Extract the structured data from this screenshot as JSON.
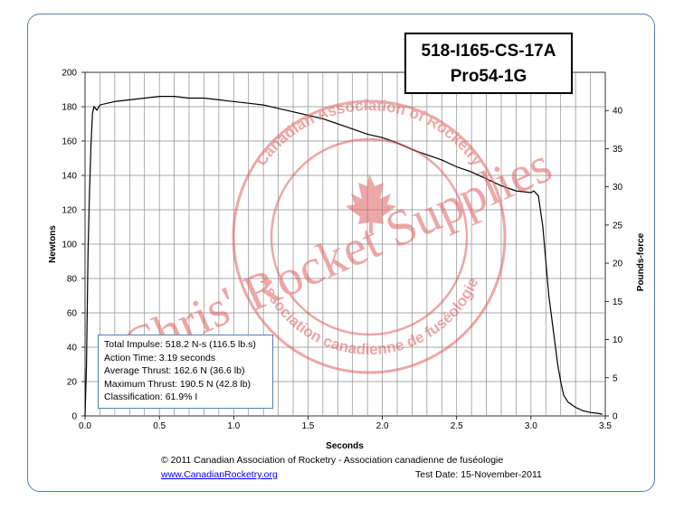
{
  "chart_data": {
    "type": "line",
    "title": "518-I165-CS-17A",
    "subtitle": "Pro54-1G",
    "xlabel": "Seconds",
    "ylabel": "Newtons",
    "y2label": "Pounds-force",
    "xlim": [
      0,
      3.5
    ],
    "ylim": [
      0,
      200
    ],
    "y2lim": [
      0,
      45
    ],
    "xticks": [
      "0.0",
      "0.5",
      "1.0",
      "1.5",
      "2.0",
      "2.5",
      "3.0",
      "3.5"
    ],
    "yticks": [
      "0",
      "20",
      "40",
      "60",
      "80",
      "100",
      "120",
      "140",
      "160",
      "180",
      "200"
    ],
    "y2ticks": [
      "0",
      "5",
      "10",
      "15",
      "20",
      "25",
      "30",
      "35",
      "40"
    ],
    "grid": true,
    "series": [
      {
        "color": "#000000",
        "x": [
          0.0,
          0.01,
          0.02,
          0.03,
          0.04,
          0.05,
          0.06,
          0.08,
          0.1,
          0.15,
          0.2,
          0.3,
          0.4,
          0.5,
          0.6,
          0.7,
          0.8,
          0.9,
          1.0,
          1.1,
          1.2,
          1.3,
          1.4,
          1.5,
          1.6,
          1.7,
          1.8,
          1.9,
          2.0,
          2.1,
          2.2,
          2.3,
          2.4,
          2.5,
          2.6,
          2.7,
          2.8,
          2.9,
          3.0,
          3.02,
          3.05,
          3.08,
          3.1,
          3.12,
          3.15,
          3.18,
          3.2,
          3.22,
          3.25,
          3.3,
          3.35,
          3.4,
          3.45,
          3.48
        ],
        "y": [
          0,
          30,
          95,
          130,
          158,
          176,
          180,
          178,
          181,
          182,
          183,
          184,
          185,
          186,
          186,
          185,
          185,
          184,
          183,
          182,
          181,
          179,
          177,
          175,
          173,
          170,
          167,
          164,
          162,
          159,
          155,
          152,
          149,
          145,
          142,
          138,
          134,
          131,
          130,
          131,
          128,
          110,
          90,
          70,
          50,
          30,
          20,
          12,
          8,
          5,
          3,
          2,
          1.5,
          1
        ]
      }
    ]
  },
  "stats": {
    "total_impulse": "Total Impulse: 518.2 N-s (116.5 lb.s)",
    "action_time": "Action Time: 3.19 seconds",
    "average_thrust": "Average Thrust: 162.6 N (36.6 lb)",
    "maximum_thrust": "Maximum Thrust: 190.5 N (42.8 lb)",
    "classification": "Classification: 61.9% I"
  },
  "footer": {
    "copyright": "© 2011 Canadian Association of Rocketry - Association canadienne de fuséologie",
    "url": "www.CanadianRocketry.org",
    "test_date": "Test  Date: 15-November-2011"
  },
  "watermark": {
    "main_text": "Chris' Rocket Supplies",
    "seal_text_top": "Canadian Association of Rocketry",
    "seal_text_bottom": "Association canadienne de fuséologie",
    "color": "#e06060"
  }
}
